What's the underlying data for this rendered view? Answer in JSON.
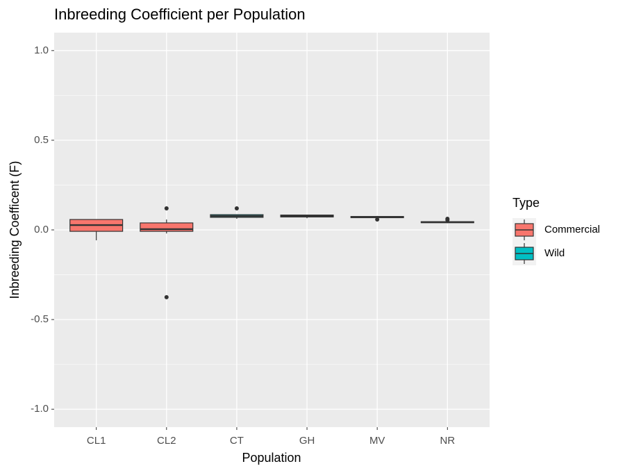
{
  "chart_data": {
    "type": "box",
    "title": "Inbreeding Coefficient per Population",
    "x_label": "Population",
    "y_label": "Inbreeding Coefficent (F)",
    "categories": [
      "CL1",
      "CL2",
      "CT",
      "GH",
      "MV",
      "NR"
    ],
    "legend_title": "Type",
    "legend_position": "right",
    "grid": true,
    "ylim": [
      -1.1,
      1.1
    ],
    "yticks": [
      {
        "value": -1,
        "label": "-1.0"
      },
      {
        "value": -0.5,
        "label": "-0.5"
      },
      {
        "value": 0,
        "label": "0.0"
      },
      {
        "value": 0.5,
        "label": "0.5"
      },
      {
        "value": 1,
        "label": "1.0"
      }
    ],
    "series": [
      {
        "name": "Commercial",
        "color": "#F8766D",
        "categories": [
          "CL1",
          "CL2"
        ],
        "boxes": [
          {
            "whisker_low": -0.058,
            "q1": -0.008,
            "median": 0.027,
            "q3": 0.058,
            "whisker_high": 0.058,
            "outliers": []
          },
          {
            "whisker_low": -0.02,
            "q1": -0.008,
            "median": 0.004,
            "q3": 0.039,
            "whisker_high": 0.058,
            "outliers": [
              0.12,
              -0.375
            ]
          }
        ]
      },
      {
        "name": "Wild",
        "color": "#00BFC4",
        "categories": [
          "CT",
          "GH",
          "MV",
          "NR"
        ],
        "boxes": [
          {
            "whisker_low": 0.062,
            "q1": 0.07,
            "median": 0.077,
            "q3": 0.085,
            "whisker_high": 0.085,
            "outliers": [
              0.12
            ]
          },
          {
            "whisker_low": 0.065,
            "q1": 0.072,
            "median": 0.078,
            "q3": 0.083,
            "whisker_high": 0.085,
            "outliers": []
          },
          {
            "whisker_low": 0.065,
            "q1": 0.068,
            "median": 0.072,
            "q3": 0.075,
            "whisker_high": 0.078,
            "outliers": [
              0.058
            ]
          },
          {
            "whisker_low": 0.038,
            "q1": 0.04,
            "median": 0.043,
            "q3": 0.046,
            "whisker_high": 0.048,
            "outliers": [
              0.062,
              0.055
            ]
          }
        ]
      }
    ]
  }
}
